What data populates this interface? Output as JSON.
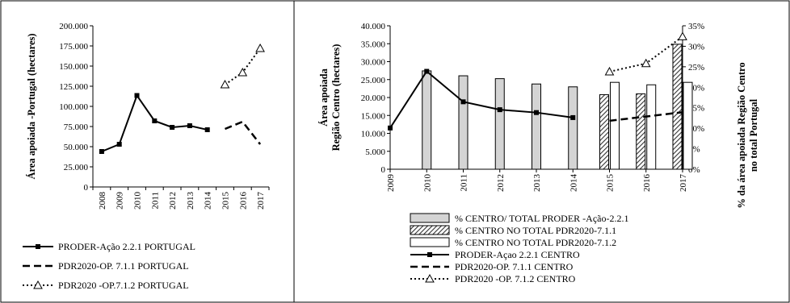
{
  "chart_data": [
    {
      "type": "line",
      "title": "",
      "ylabel": "Área apoiada -Portugal (hectares)",
      "xlabel": "",
      "categories": [
        "2008",
        "2009",
        "2010",
        "2011",
        "2012",
        "2013",
        "2014",
        "2015",
        "2016",
        "2017"
      ],
      "ylim": [
        0,
        200000
      ],
      "yticks": [
        "0",
        "25.000",
        "50.000",
        "75.000",
        "100.000",
        "125.000",
        "150.000",
        "175.000",
        "200.000"
      ],
      "grid": false,
      "legend_position": "bottom",
      "series": [
        {
          "name": "PRODER-Ação 2.2.1 PORTUGAL",
          "style": "solid-square",
          "values": [
            44000,
            53000,
            113500,
            82000,
            74000,
            76000,
            71000,
            null,
            null,
            null
          ]
        },
        {
          "name": "PDR2020-OP. 7.1.1 PORTUGAL",
          "style": "dashed",
          "values": [
            null,
            null,
            null,
            null,
            null,
            null,
            null,
            72000,
            81000,
            53000
          ]
        },
        {
          "name": "PDR2020 -OP.7.1.2 PORTUGAL",
          "style": "dotted-triangle",
          "values": [
            null,
            null,
            null,
            null,
            null,
            null,
            null,
            127000,
            142000,
            172000
          ]
        }
      ]
    },
    {
      "type": "bar",
      "title": "",
      "ylabel": "Área apoiada Região Centro (hectares)",
      "ylabel_lines": [
        "Área apoiada",
        "Região Centro  (hectares)"
      ],
      "y2label": "% da área apoiada Região Centro no total Portugal",
      "y2label_lines": [
        "% da área apoiada Região Centro",
        "no total Portugal"
      ],
      "categories": [
        "2009",
        "2010",
        "2011",
        "2012",
        "2013",
        "2014",
        "2015",
        "2016",
        "2017"
      ],
      "ylim": [
        0,
        40000
      ],
      "yticks": [
        "0",
        "5.000",
        "10.000",
        "15.000",
        "20.000",
        "25.000",
        "30.000",
        "35.000",
        "40.000"
      ],
      "y2lim": [
        0,
        35
      ],
      "y2ticks": [
        "0%",
        "5%",
        "10%",
        "15%",
        "20%",
        "25%",
        "30%",
        "35%"
      ],
      "grid": false,
      "legend_position": "bottom",
      "bar_series": [
        {
          "name": "% CENTRO/ TOTAL PRODER -Ação-2.2.1",
          "fill": "gray",
          "values": [
            null,
            24,
            22.8,
            22.1,
            20.8,
            20.1,
            null,
            null,
            null
          ]
        },
        {
          "name": "% CENTRO NO TOTAL PDR2020-7.1.1",
          "fill": "hatched",
          "values": [
            null,
            null,
            null,
            null,
            null,
            null,
            18.2,
            18.4,
            30.5
          ]
        },
        {
          "name": "% CENTRO NO TOTAL PDR2020-7.1.2",
          "fill": "white",
          "values": [
            null,
            null,
            null,
            null,
            null,
            null,
            21.2,
            20.6,
            21.2
          ]
        }
      ],
      "line_series": [
        {
          "name": "PRODER-Açao 2.2.1 CENTRO",
          "style": "solid-square",
          "values": [
            11500,
            27300,
            18800,
            16600,
            15800,
            14400,
            null,
            null,
            null
          ]
        },
        {
          "name": "PDR2020-OP. 7.1.1 CENTRO",
          "style": "dashed",
          "values": [
            null,
            null,
            null,
            null,
            null,
            null,
            13500,
            14700,
            15900
          ]
        },
        {
          "name": "PDR2020 -OP. 7.1.2 CENTRO",
          "style": "dotted-triangle",
          "values": [
            null,
            null,
            null,
            null,
            null,
            null,
            27200,
            29500,
            37000
          ]
        }
      ]
    }
  ]
}
